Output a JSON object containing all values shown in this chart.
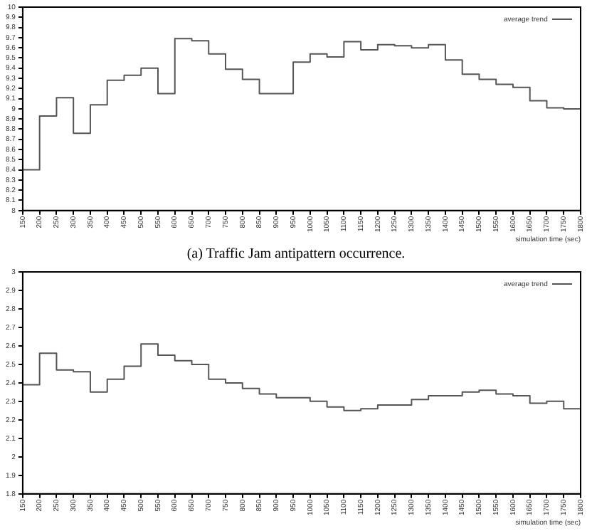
{
  "chart_data": [
    {
      "type": "step",
      "xlabel": "simulation time (sec)",
      "legend": "top right",
      "marker": "none",
      "grid": false,
      "annotations": [
        "(a) Traffic Jam antipattern occurrence."
      ],
      "x": [
        150,
        200,
        250,
        300,
        350,
        400,
        450,
        500,
        550,
        600,
        650,
        700,
        750,
        800,
        850,
        900,
        950,
        1000,
        1050,
        1100,
        1150,
        1200,
        1250,
        1300,
        1350,
        1400,
        1450,
        1500,
        1550,
        1600,
        1650,
        1700,
        1750,
        1800
      ],
      "xlim": [
        150,
        1800
      ],
      "xticks": [
        150,
        200,
        250,
        300,
        350,
        400,
        450,
        500,
        550,
        600,
        650,
        700,
        750,
        800,
        850,
        900,
        950,
        1000,
        1050,
        1100,
        1150,
        1200,
        1250,
        1300,
        1350,
        1400,
        1450,
        1500,
        1550,
        1600,
        1650,
        1700,
        1750,
        1800
      ],
      "ylim": [
        8,
        10
      ],
      "yticks": [
        8,
        8.1,
        8.2,
        8.3,
        8.4,
        8.5,
        8.6,
        8.7,
        8.8,
        8.9,
        9,
        9.1,
        9.2,
        9.3,
        9.4,
        9.5,
        9.6,
        9.7,
        9.8,
        9.9,
        10
      ],
      "series": [
        {
          "name": "average trend",
          "color": "#555555",
          "values": [
            8.4,
            8.93,
            9.11,
            8.76,
            9.04,
            9.28,
            9.33,
            9.4,
            9.15,
            9.69,
            9.67,
            9.54,
            9.39,
            9.29,
            9.15,
            9.15,
            9.46,
            9.54,
            9.51,
            9.66,
            9.58,
            9.63,
            9.62,
            9.6,
            9.63,
            9.48,
            9.34,
            9.29,
            9.24,
            9.21,
            9.08,
            9.01,
            9.0,
            9.0
          ]
        }
      ]
    },
    {
      "type": "step",
      "xlabel": "simulation time (sec)",
      "legend": "top right",
      "marker": "none",
      "grid": false,
      "x": [
        150,
        200,
        250,
        300,
        350,
        400,
        450,
        500,
        550,
        600,
        650,
        700,
        750,
        800,
        850,
        900,
        950,
        1000,
        1050,
        1100,
        1150,
        1200,
        1250,
        1300,
        1350,
        1400,
        1450,
        1500,
        1550,
        1600,
        1650,
        1700,
        1750,
        1800
      ],
      "xlim": [
        150,
        1800
      ],
      "xticks": [
        150,
        200,
        250,
        300,
        350,
        400,
        450,
        500,
        550,
        600,
        650,
        700,
        750,
        800,
        850,
        900,
        950,
        1000,
        1050,
        1100,
        1150,
        1200,
        1250,
        1300,
        1350,
        1400,
        1450,
        1500,
        1550,
        1600,
        1650,
        1700,
        1750,
        1800
      ],
      "ylim": [
        1.8,
        3
      ],
      "yticks": [
        1.8,
        1.9,
        2,
        2.1,
        2.2,
        2.3,
        2.4,
        2.5,
        2.6,
        2.7,
        2.8,
        2.9,
        3
      ],
      "series": [
        {
          "name": "average trend",
          "color": "#555555",
          "values": [
            2.39,
            2.56,
            2.47,
            2.46,
            2.35,
            2.42,
            2.49,
            2.61,
            2.55,
            2.52,
            2.5,
            2.42,
            2.4,
            2.37,
            2.34,
            2.32,
            2.32,
            2.3,
            2.27,
            2.25,
            2.26,
            2.28,
            2.28,
            2.31,
            2.33,
            2.33,
            2.35,
            2.36,
            2.34,
            2.33,
            2.29,
            2.3,
            2.26,
            2.26
          ]
        }
      ]
    }
  ]
}
